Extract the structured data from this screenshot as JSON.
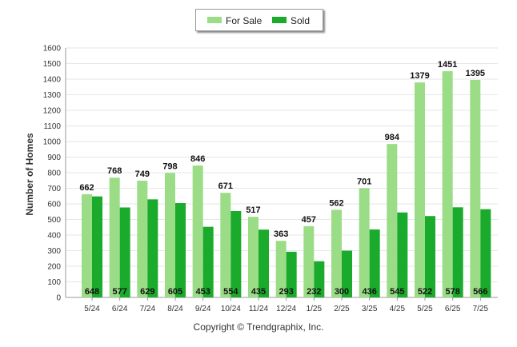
{
  "chart_data": {
    "type": "bar",
    "categories": [
      "5/24",
      "6/24",
      "7/24",
      "8/24",
      "9/24",
      "10/24",
      "11/24",
      "12/24",
      "1/25",
      "2/25",
      "3/25",
      "4/25",
      "5/25",
      "6/25",
      "7/25"
    ],
    "series": [
      {
        "name": "For Sale",
        "color": "#9bdd86",
        "values": [
          662,
          768,
          749,
          798,
          846,
          671,
          517,
          363,
          457,
          562,
          701,
          984,
          1379,
          1451,
          1395
        ]
      },
      {
        "name": "Sold",
        "color": "#1aab2c",
        "values": [
          648,
          577,
          629,
          605,
          453,
          554,
          435,
          293,
          232,
          300,
          436,
          545,
          522,
          578,
          566
        ]
      }
    ],
    "ylabel": "Number of Homes",
    "ylim": [
      0,
      1600
    ],
    "yticks": [
      0,
      100,
      200,
      300,
      400,
      500,
      600,
      700,
      800,
      900,
      1000,
      1100,
      1200,
      1300,
      1400,
      1500,
      1600
    ],
    "grid": true,
    "legend_placement": "top-center"
  },
  "footer": {
    "copyright": "Copyright © Trendgraphix, Inc."
  }
}
